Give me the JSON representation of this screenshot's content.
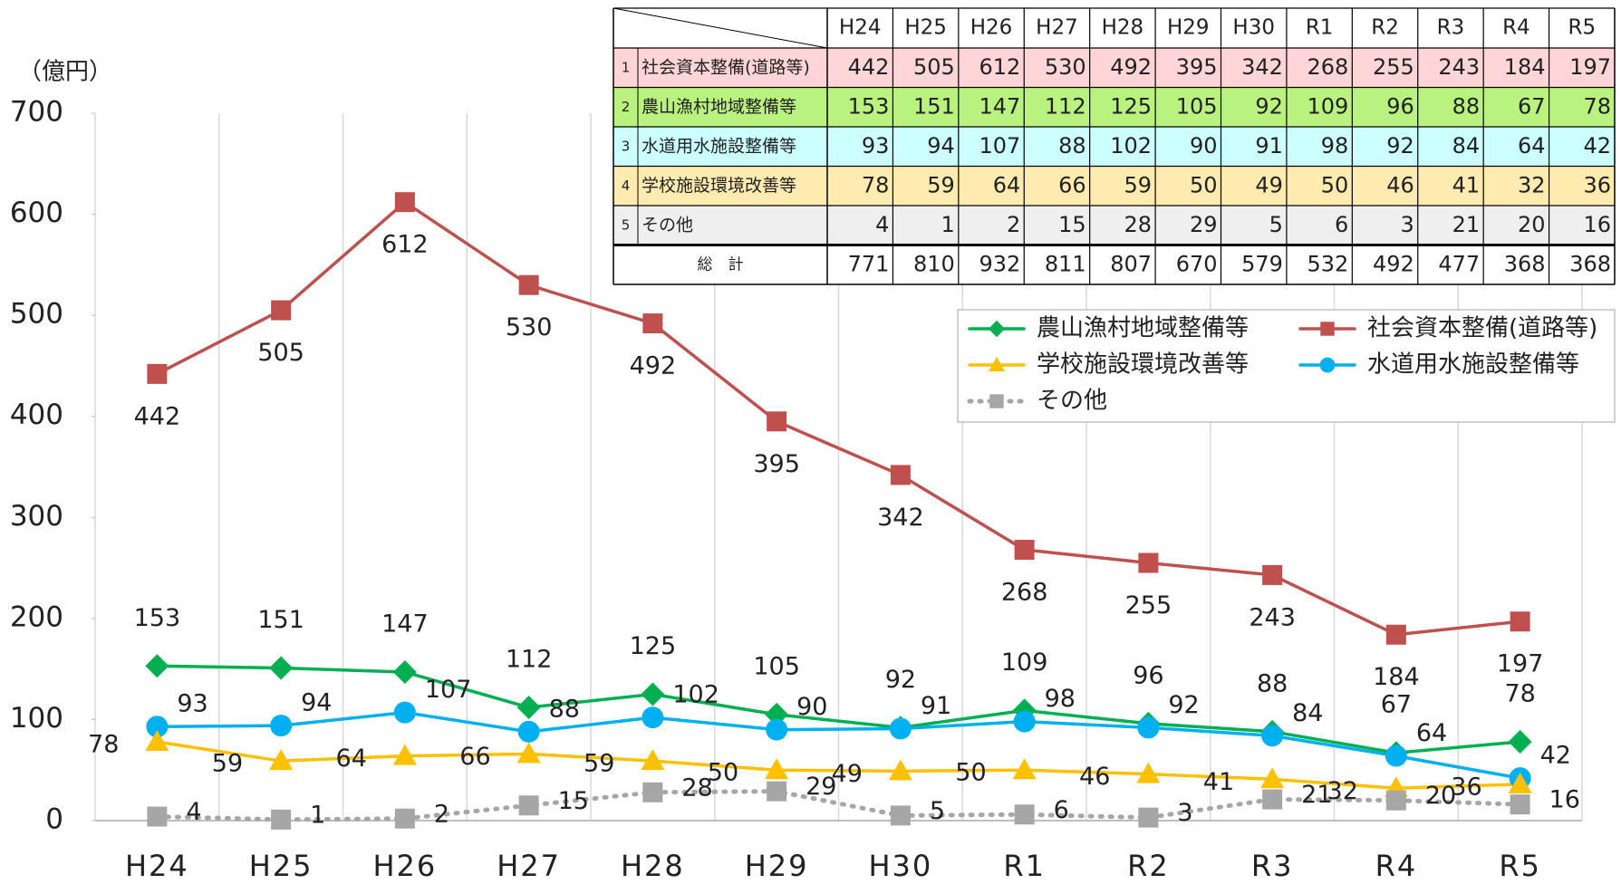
{
  "chart_data": {
    "type": "line",
    "y_axis_label": "（億円）",
    "categories": [
      "H24",
      "H25",
      "H26",
      "H27",
      "H28",
      "H29",
      "H30",
      "R1",
      "R2",
      "R3",
      "R4",
      "R5"
    ],
    "ylim": [
      0,
      700
    ],
    "yticks": [
      0,
      100,
      200,
      300,
      400,
      500,
      600,
      700
    ],
    "grid": true,
    "series": [
      {
        "name": "社会資本整備(道路等)",
        "color": "#c0504d",
        "marker": "square",
        "line_style": "solid",
        "values": [
          442,
          505,
          612,
          530,
          492,
          395,
          342,
          268,
          255,
          243,
          184,
          197
        ]
      },
      {
        "name": "農山漁村地域整備等",
        "color": "#00b050",
        "marker": "diamond",
        "line_style": "solid",
        "values": [
          153,
          151,
          147,
          112,
          125,
          105,
          92,
          109,
          96,
          88,
          67,
          78
        ]
      },
      {
        "name": "水道用水施設整備等",
        "color": "#00b0f0",
        "marker": "circle",
        "line_style": "solid",
        "values": [
          93,
          94,
          107,
          88,
          102,
          90,
          91,
          98,
          92,
          84,
          64,
          42
        ]
      },
      {
        "name": "学校施設環境改善等",
        "color": "#ffc000",
        "marker": "triangle",
        "line_style": "solid",
        "values": [
          78,
          59,
          64,
          66,
          59,
          50,
          49,
          50,
          46,
          41,
          32,
          36
        ]
      },
      {
        "name": "その他",
        "color": "#a6a6a6",
        "marker": "square",
        "line_style": "dotted",
        "values": [
          4,
          1,
          2,
          15,
          28,
          29,
          5,
          6,
          3,
          21,
          20,
          16
        ]
      }
    ],
    "table": {
      "row_numbers": [
        1,
        2,
        3,
        4,
        5
      ],
      "row_colors": [
        "#ffd5d8",
        "#b9f27f",
        "#ccffff",
        "#ffeab0",
        "#efefef"
      ],
      "total_label": "総　計",
      "totals": [
        771,
        810,
        932,
        811,
        807,
        670,
        579,
        532,
        492,
        477,
        368,
        368
      ]
    }
  }
}
